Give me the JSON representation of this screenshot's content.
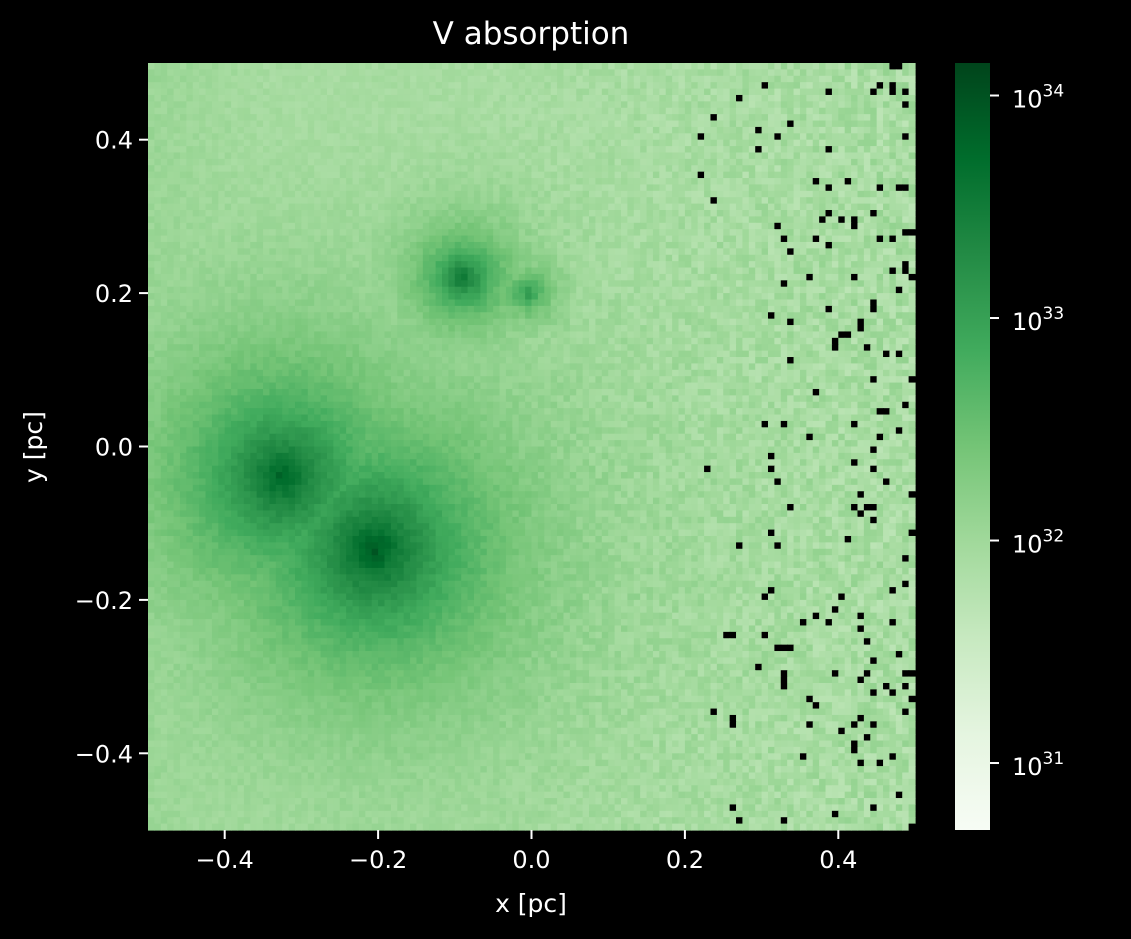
{
  "chart_data": {
    "type": "heatmap",
    "title": "V absorption",
    "xlabel": "x [pc]",
    "ylabel": "y [pc]",
    "xlim": [
      -0.5,
      0.5
    ],
    "ylim": [
      -0.5,
      0.5
    ],
    "x_ticks": [
      -0.4,
      -0.2,
      0.0,
      0.2,
      0.4
    ],
    "x_tick_labels": [
      "−0.4",
      "−0.2",
      "0.0",
      "0.2",
      "0.4"
    ],
    "y_ticks": [
      -0.4,
      -0.2,
      0.0,
      0.2,
      0.4
    ],
    "y_tick_labels": [
      "−0.4",
      "−0.2",
      "0.0",
      "0.2",
      "0.4"
    ],
    "grid": false,
    "colormap": "Greens",
    "colorbar": {
      "scale": "log",
      "range": [
        5e+30,
        1.4e+34
      ],
      "ticks": [
        1e+31,
        1e+32,
        1e+33,
        1e+34
      ],
      "tick_labels": [
        {
          "base": "10",
          "exp": "31"
        },
        {
          "base": "10",
          "exp": "32"
        },
        {
          "base": "10",
          "exp": "33"
        },
        {
          "base": "10",
          "exp": "34"
        }
      ]
    },
    "grid_bins": 120,
    "background_level": 5e+31,
    "peaks": [
      {
        "x": -0.325,
        "y": -0.04,
        "peak": 1e+34,
        "width": 0.12
      },
      {
        "x": -0.205,
        "y": -0.135,
        "peak": 1.3e+34,
        "width": 0.13
      },
      {
        "x": -0.09,
        "y": 0.22,
        "peak": 6e+33,
        "width": 0.05
      },
      {
        "x": -0.005,
        "y": 0.2,
        "peak": 1.5e+33,
        "width": 0.03
      }
    ],
    "empty_pixel_color": "#000000"
  },
  "colors": {
    "background": "#000000",
    "text": "#ffffff",
    "cmap_stops": [
      "#f7fcf5",
      "#e5f5e0",
      "#c7e9c0",
      "#a1d99b",
      "#74c476",
      "#41ab5d",
      "#238b45",
      "#006d2c",
      "#00441b"
    ]
  }
}
